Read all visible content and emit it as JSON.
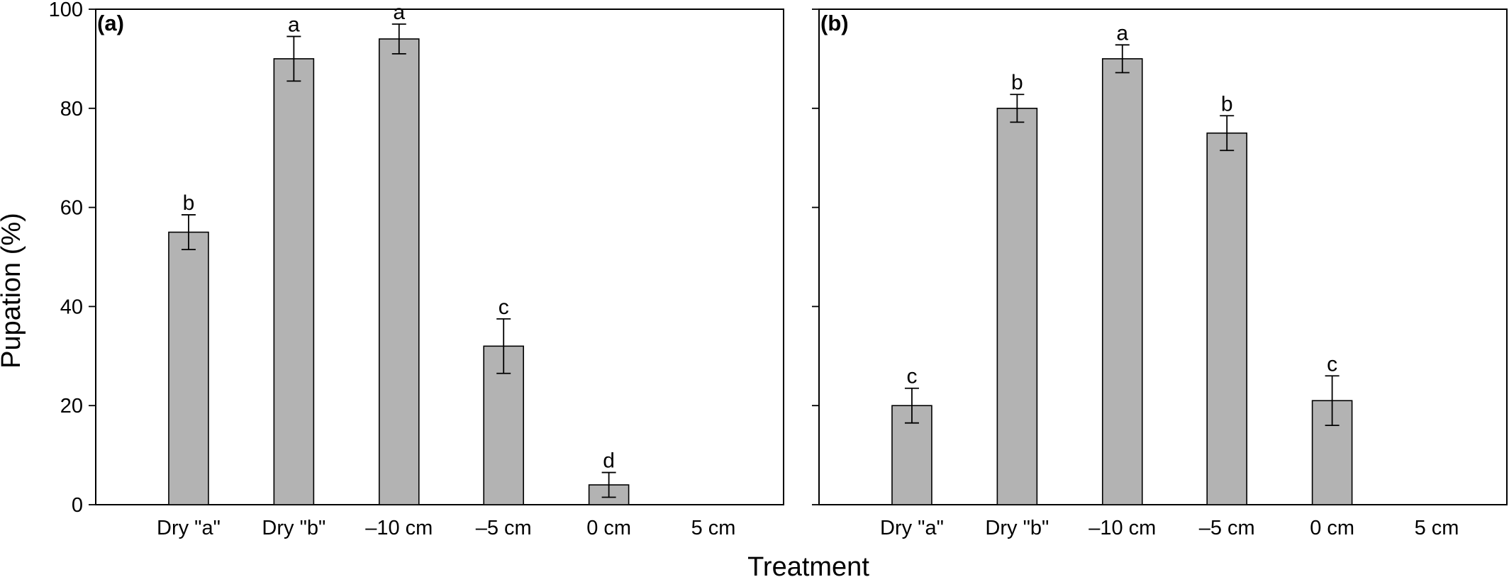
{
  "chart_data": [
    {
      "type": "bar",
      "panel_label": "(a)",
      "categories": [
        "Dry \"a\"",
        "Dry \"b\"",
        "–10 cm",
        "–5 cm",
        "0 cm",
        "5 cm"
      ],
      "values": [
        55,
        90,
        94,
        32,
        4,
        0
      ],
      "errors": [
        3.5,
        4.5,
        3,
        5.5,
        2.5,
        0
      ],
      "labels": [
        "b",
        "a",
        "a",
        "c",
        "d",
        ""
      ],
      "ylim": [
        0,
        100
      ],
      "yticks": [
        0,
        20,
        40,
        60,
        80,
        100
      ],
      "ylabel": "Pupation (%)",
      "xlabel": "Treatment",
      "bar_color": "#b3b3b3"
    },
    {
      "type": "bar",
      "panel_label": "(b)",
      "categories": [
        "Dry \"a\"",
        "Dry \"b\"",
        "–10 cm",
        "–5 cm",
        "0 cm",
        "5 cm"
      ],
      "values": [
        20,
        80,
        90,
        75,
        21,
        0
      ],
      "errors": [
        3.5,
        2.8,
        2.8,
        3.5,
        5,
        0
      ],
      "labels": [
        "c",
        "b",
        "a",
        "b",
        "c",
        ""
      ],
      "ylim": [
        0,
        100
      ],
      "yticks": [
        0,
        20,
        40,
        60,
        80,
        100
      ],
      "ylabel": "",
      "xlabel": "Treatment",
      "bar_color": "#b3b3b3"
    }
  ],
  "shared": {
    "ylabel": "Pupation (%)",
    "xlabel": "Treatment"
  }
}
